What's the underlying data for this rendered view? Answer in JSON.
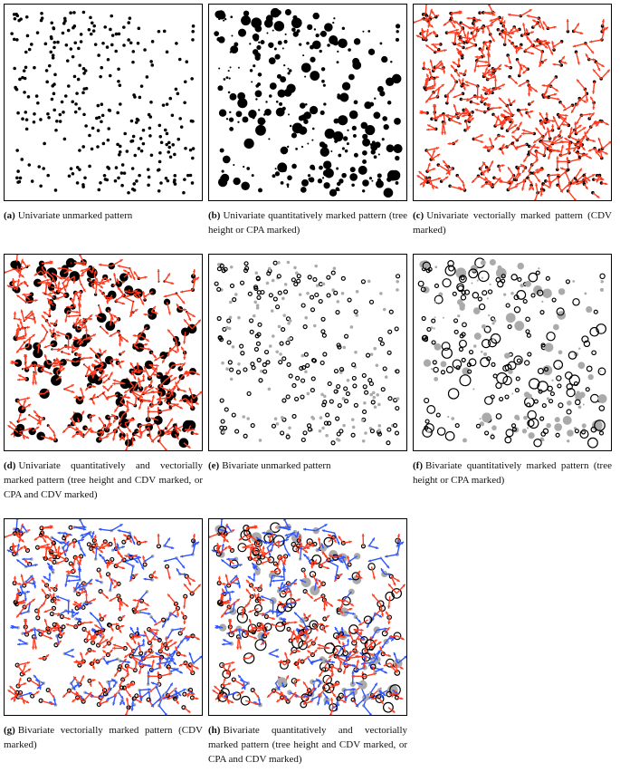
{
  "figure": {
    "colors": {
      "ink": "#000000",
      "species_b": "#aaaaaa",
      "vector_primary": "#ff3b1f",
      "vector_secondary": "#2f55ff"
    },
    "panels": [
      {
        "id": "a",
        "letter": "(a)",
        "caption": "Univariate unmarked pattern",
        "style": {
          "bivariate": false,
          "sized": false,
          "arrows": 0,
          "ringed": false
        }
      },
      {
        "id": "b",
        "letter": "(b)",
        "caption": "Univariate quantitatively marked pattern (tree height or CPA marked)",
        "style": {
          "bivariate": false,
          "sized": true,
          "arrows": 0,
          "ringed": false
        }
      },
      {
        "id": "c",
        "letter": "(c)",
        "caption": "Univariate vectorially marked pattern (CDV marked)",
        "style": {
          "bivariate": false,
          "sized": false,
          "arrows": 1,
          "ringed": false
        }
      },
      {
        "id": "d",
        "letter": "(d)",
        "caption": "Univariate quantitatively and vectorially marked pattern (tree height and CDV marked, or CPA and CDV marked)",
        "style": {
          "bivariate": false,
          "sized": true,
          "arrows": 1,
          "ringed": false
        }
      },
      {
        "id": "e",
        "letter": "(e)",
        "caption": "Bivariate unmarked pattern",
        "style": {
          "bivariate": true,
          "sized": false,
          "arrows": 0,
          "ringed": true
        }
      },
      {
        "id": "f",
        "letter": "(f)",
        "caption": "Bivariate quantitatively marked pattern (tree height or CPA marked)",
        "style": {
          "bivariate": true,
          "sized": true,
          "arrows": 0,
          "ringed": true
        }
      },
      {
        "id": "g",
        "letter": "(g)",
        "caption": "Bivariate vectorially marked pattern (CDV marked)",
        "style": {
          "bivariate": true,
          "sized": false,
          "arrows": 2,
          "ringed": true
        }
      },
      {
        "id": "h",
        "letter": "(h)",
        "caption": "Bivariate quantitatively and vectorially marked pattern (tree height and CDV marked, or CPA and CDV marked)",
        "style": {
          "bivariate": true,
          "sized": true,
          "arrows": 2,
          "ringed": true
        }
      }
    ]
  }
}
